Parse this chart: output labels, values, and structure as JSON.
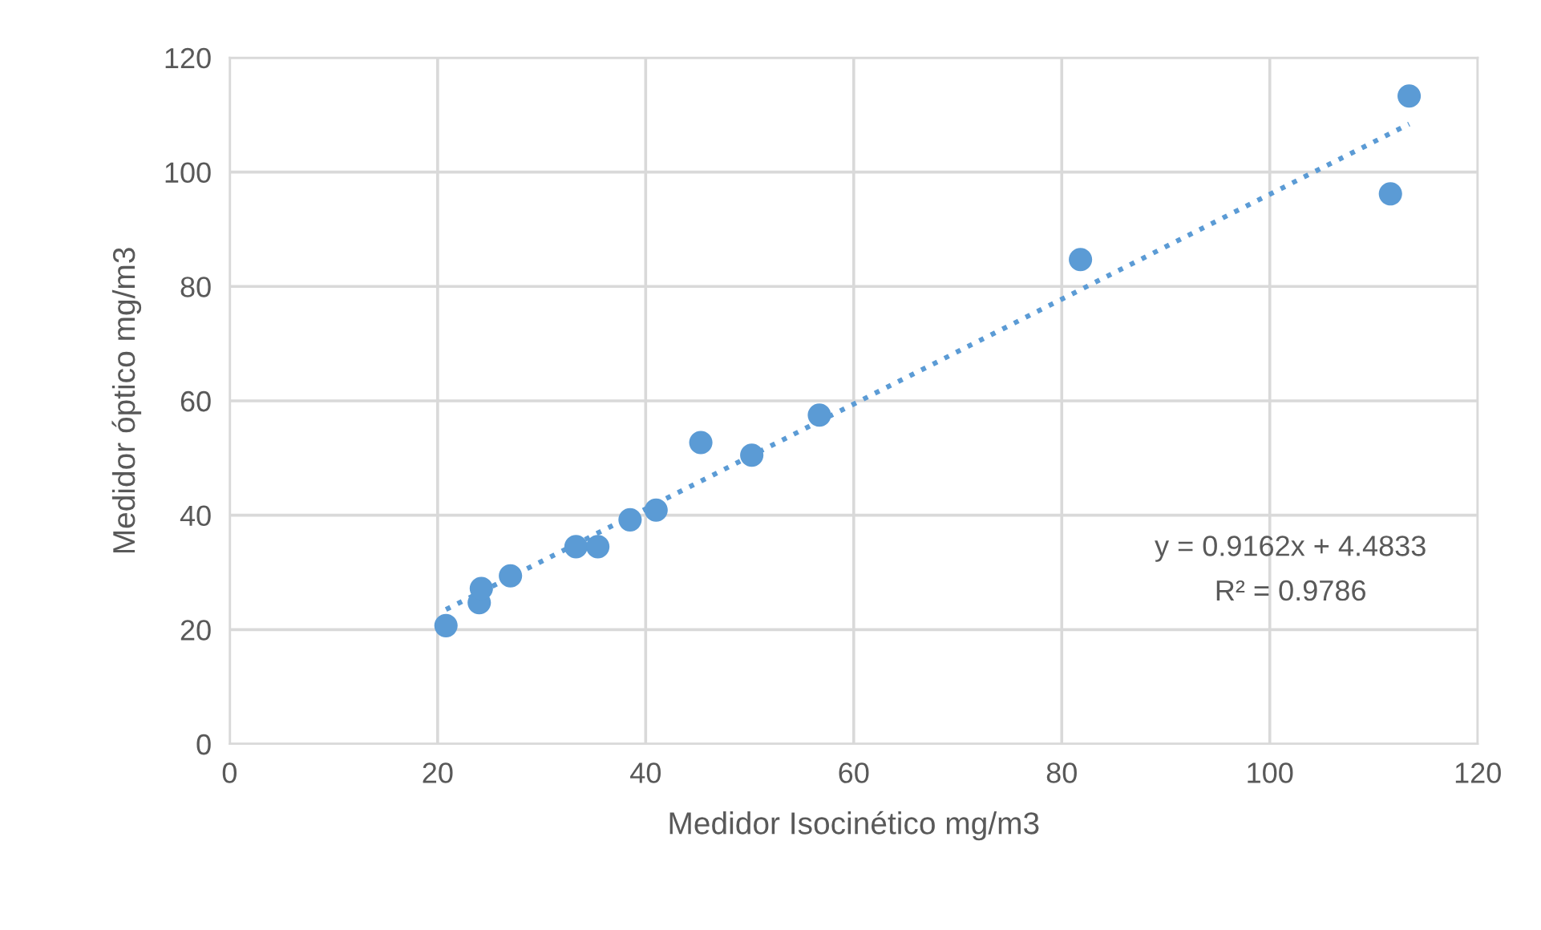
{
  "chart_data": {
    "type": "scatter",
    "xlabel": "Medidor Isocinético mg/m3",
    "ylabel": "Medidor óptico mg/m3",
    "xlim": [
      0,
      120
    ],
    "ylim": [
      0,
      120
    ],
    "xticks": [
      0,
      20,
      40,
      60,
      80,
      100,
      120
    ],
    "yticks": [
      0,
      20,
      40,
      60,
      80,
      100,
      120
    ],
    "grid": true,
    "series": [
      {
        "marker": "circle",
        "color": "#5b9bd5",
        "x": [
          20.8,
          24.0,
          24.2,
          27.0,
          33.3,
          35.4,
          38.5,
          41.0,
          45.3,
          50.2,
          56.7,
          81.8,
          111.6,
          113.4
        ],
        "values": [
          20.7,
          24.7,
          27.2,
          29.4,
          34.5,
          34.5,
          39.2,
          40.9,
          52.7,
          50.5,
          57.5,
          84.7,
          96.2,
          113.3
        ]
      },
      {
        "type": "line",
        "marker": "none",
        "line_style": "dotted",
        "color": "#5b9bd5",
        "x": [
          20.8,
          113.4
        ],
        "values": [
          23.5,
          108.4
        ]
      }
    ],
    "annotations": [
      "y = 0.9162x + 4.4833",
      "R² = 0.9786"
    ]
  }
}
